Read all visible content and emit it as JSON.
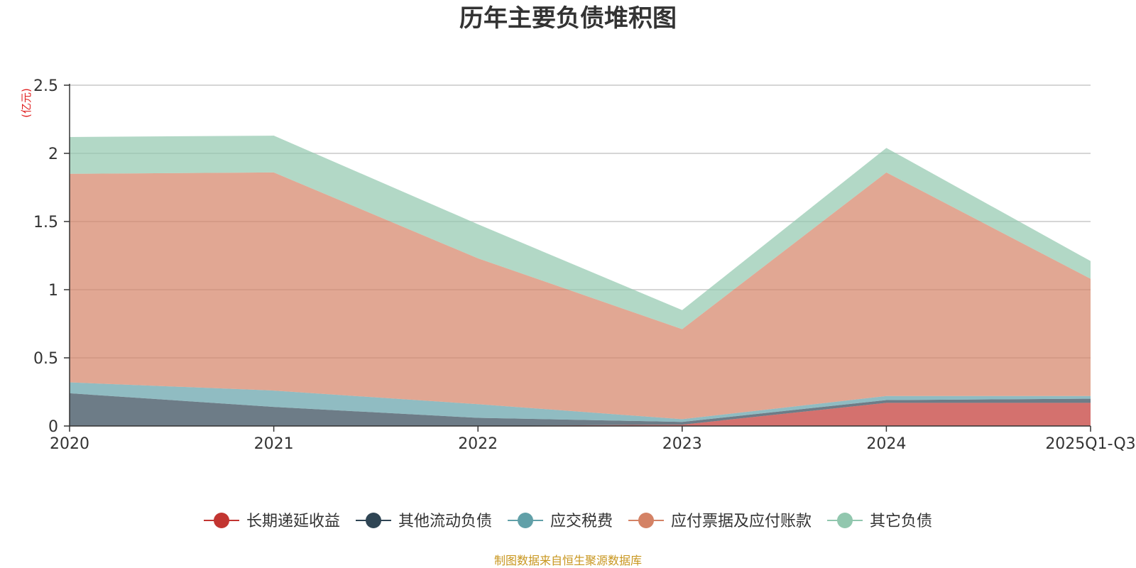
{
  "chart_data": {
    "type": "area",
    "stacked": true,
    "title": "历年主要负债堆积图",
    "ylabel": "(亿元)",
    "xlabel": "",
    "categories": [
      "2020",
      "2021",
      "2022",
      "2023",
      "2024",
      "2025Q1-Q3"
    ],
    "ylim": [
      0,
      2.5
    ],
    "yticks": [
      0,
      0.5,
      1,
      1.5,
      2,
      2.5
    ],
    "ytick_labels": [
      "0",
      "0.5",
      "1",
      "1.5",
      "2",
      "2.5"
    ],
    "grid": true,
    "legend_position": "bottom",
    "series": [
      {
        "name": "长期递延收益",
        "color": "#c23531",
        "values": [
          0,
          0,
          0,
          0.01,
          0.17,
          0.17
        ]
      },
      {
        "name": "其他流动负债",
        "color": "#2f4554",
        "values": [
          0.24,
          0.14,
          0.06,
          0.02,
          0.02,
          0.03
        ]
      },
      {
        "name": "应交税费",
        "color": "#61a0a8",
        "values": [
          0.08,
          0.12,
          0.1,
          0.02,
          0.03,
          0.02
        ]
      },
      {
        "name": "应付票据及应付账款",
        "color": "#d48265",
        "values": [
          1.53,
          1.6,
          1.07,
          0.66,
          1.64,
          0.86
        ]
      },
      {
        "name": "其它负债",
        "color": "#91c7ae",
        "values": [
          0.27,
          0.27,
          0.25,
          0.14,
          0.18,
          0.13
        ]
      }
    ]
  },
  "source_note": "制图数据来自恒生聚源数据库"
}
